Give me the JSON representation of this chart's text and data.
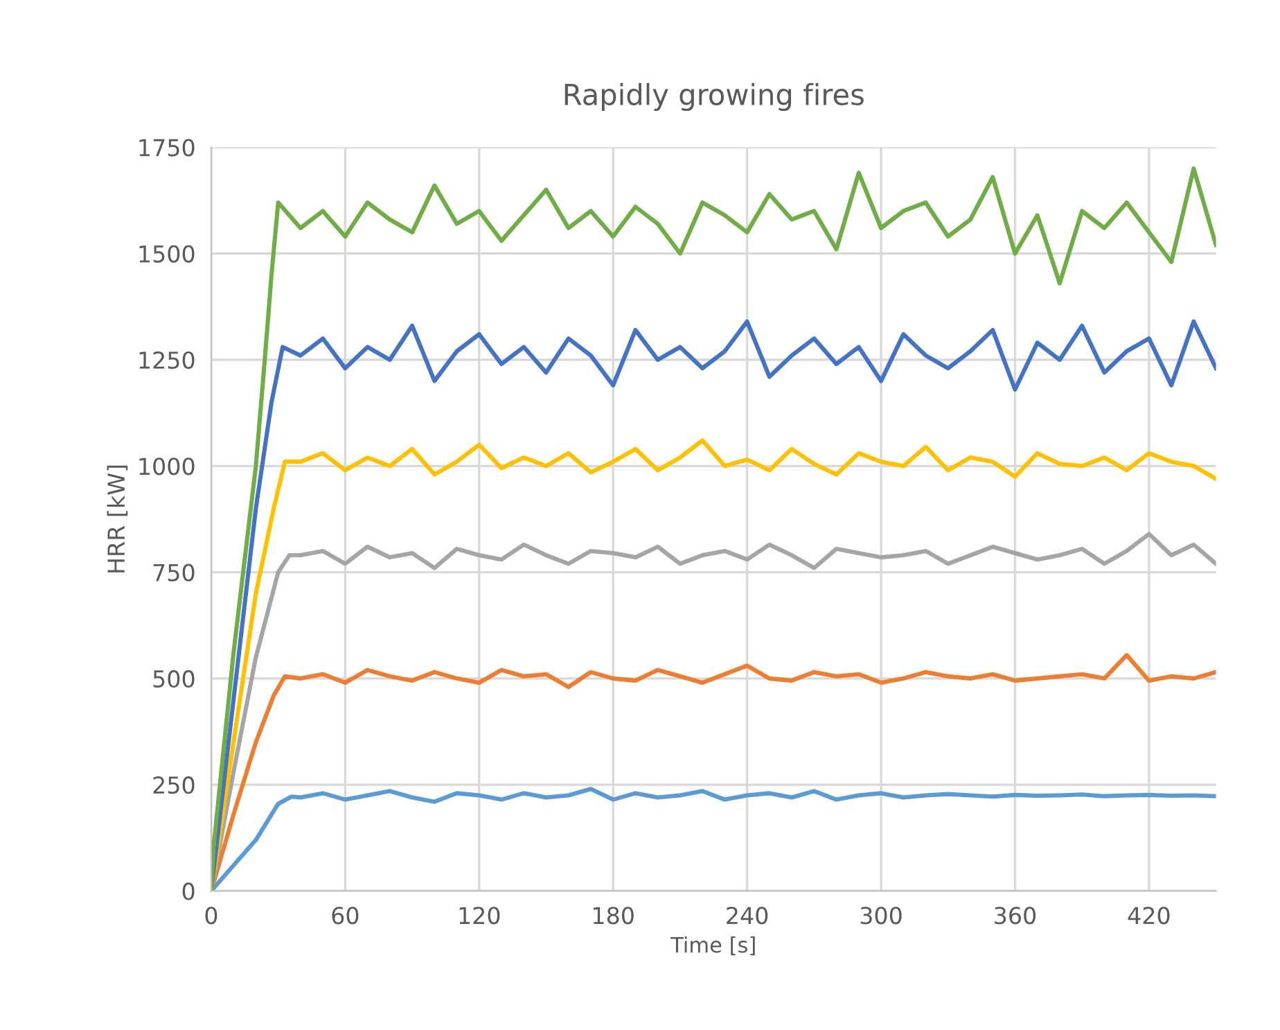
{
  "chart_data": {
    "type": "line",
    "title": "Rapidly growing fires",
    "xlabel": "Time [s]",
    "ylabel": "HRR [kW]",
    "xlim": [
      0,
      450
    ],
    "xticks": [
      0,
      60,
      120,
      180,
      240,
      300,
      360,
      420
    ],
    "ylim": [
      0,
      1750
    ],
    "yticks": [
      0,
      250,
      500,
      750,
      1000,
      1250,
      1500,
      1750
    ],
    "grid": true,
    "legend": false,
    "marker": "none",
    "line_style": "solid",
    "series": [
      {
        "color": "#5b9bd5",
        "x": [
          0,
          10,
          20,
          30,
          36,
          40,
          50,
          60,
          70,
          80,
          90,
          100,
          110,
          120,
          130,
          140,
          150,
          160,
          170,
          180,
          190,
          200,
          210,
          220,
          230,
          240,
          250,
          260,
          270,
          280,
          290,
          300,
          310,
          320,
          330,
          340,
          350,
          360,
          370,
          380,
          390,
          400,
          410,
          420,
          430,
          440,
          450
        ],
        "values": [
          0,
          60,
          120,
          205,
          222,
          220,
          230,
          215,
          225,
          235,
          220,
          210,
          230,
          225,
          215,
          230,
          220,
          225,
          240,
          215,
          230,
          220,
          225,
          235,
          215,
          225,
          230,
          220,
          235,
          215,
          225,
          230,
          220,
          225,
          228,
          225,
          222,
          226,
          224,
          225,
          227,
          223,
          225,
          226,
          224,
          225,
          223
        ]
      },
      {
        "color": "#ed7d31",
        "x": [
          0,
          10,
          20,
          28,
          33,
          40,
          50,
          60,
          70,
          80,
          90,
          100,
          110,
          120,
          130,
          140,
          150,
          160,
          170,
          180,
          190,
          200,
          210,
          220,
          230,
          240,
          250,
          260,
          270,
          280,
          290,
          300,
          310,
          320,
          330,
          340,
          350,
          360,
          370,
          380,
          390,
          400,
          410,
          420,
          430,
          440,
          450
        ],
        "values": [
          0,
          180,
          350,
          460,
          505,
          500,
          510,
          490,
          520,
          505,
          495,
          515,
          500,
          490,
          520,
          505,
          510,
          480,
          515,
          500,
          495,
          520,
          505,
          490,
          510,
          530,
          500,
          495,
          515,
          505,
          510,
          490,
          500,
          515,
          505,
          500,
          510,
          495,
          500,
          505,
          510,
          500,
          555,
          495,
          505,
          500,
          515
        ]
      },
      {
        "color": "#a5a5a5",
        "x": [
          0,
          10,
          20,
          30,
          35,
          40,
          50,
          60,
          70,
          80,
          90,
          100,
          110,
          120,
          130,
          140,
          150,
          160,
          170,
          180,
          190,
          200,
          210,
          220,
          230,
          240,
          250,
          260,
          270,
          280,
          290,
          300,
          310,
          320,
          330,
          340,
          350,
          360,
          370,
          380,
          390,
          400,
          410,
          420,
          430,
          440,
          450
        ],
        "values": [
          0,
          280,
          550,
          750,
          790,
          790,
          800,
          770,
          810,
          785,
          795,
          760,
          805,
          790,
          780,
          815,
          790,
          770,
          800,
          795,
          785,
          810,
          770,
          790,
          800,
          780,
          815,
          790,
          760,
          805,
          795,
          785,
          790,
          800,
          770,
          790,
          810,
          795,
          780,
          790,
          805,
          770,
          800,
          840,
          790,
          815,
          770
        ]
      },
      {
        "color": "#ffc000",
        "x": [
          0,
          10,
          20,
          28,
          33,
          40,
          50,
          60,
          70,
          80,
          90,
          100,
          110,
          120,
          130,
          140,
          150,
          160,
          170,
          180,
          190,
          200,
          210,
          220,
          230,
          240,
          250,
          260,
          270,
          280,
          290,
          300,
          310,
          320,
          330,
          340,
          350,
          360,
          370,
          380,
          390,
          400,
          410,
          420,
          430,
          440,
          450
        ],
        "values": [
          0,
          350,
          700,
          900,
          1010,
          1010,
          1030,
          990,
          1020,
          1000,
          1040,
          980,
          1010,
          1050,
          995,
          1020,
          1000,
          1030,
          985,
          1010,
          1040,
          990,
          1020,
          1060,
          1000,
          1015,
          990,
          1040,
          1005,
          980,
          1030,
          1010,
          1000,
          1045,
          990,
          1020,
          1010,
          975,
          1030,
          1005,
          1000,
          1020,
          990,
          1030,
          1010,
          1000,
          970
        ]
      },
      {
        "color": "#4472c4",
        "x": [
          0,
          10,
          20,
          27,
          32,
          40,
          50,
          60,
          70,
          80,
          90,
          100,
          110,
          120,
          130,
          140,
          150,
          160,
          170,
          180,
          190,
          200,
          210,
          220,
          230,
          240,
          250,
          260,
          270,
          280,
          290,
          300,
          310,
          320,
          330,
          340,
          350,
          360,
          370,
          380,
          390,
          400,
          410,
          420,
          430,
          440,
          450
        ],
        "values": [
          0,
          450,
          900,
          1150,
          1280,
          1260,
          1300,
          1230,
          1280,
          1250,
          1330,
          1200,
          1270,
          1310,
          1240,
          1280,
          1220,
          1300,
          1260,
          1190,
          1320,
          1250,
          1280,
          1230,
          1270,
          1340,
          1210,
          1260,
          1300,
          1240,
          1280,
          1200,
          1310,
          1260,
          1230,
          1270,
          1320,
          1180,
          1290,
          1250,
          1330,
          1220,
          1270,
          1300,
          1190,
          1340,
          1230
        ]
      },
      {
        "color": "#70ad47",
        "x": [
          0,
          1,
          10,
          20,
          24,
          27,
          30,
          40,
          50,
          60,
          70,
          80,
          90,
          100,
          110,
          120,
          130,
          140,
          150,
          160,
          170,
          180,
          190,
          200,
          210,
          220,
          230,
          240,
          250,
          260,
          270,
          280,
          290,
          300,
          310,
          320,
          330,
          340,
          350,
          360,
          370,
          380,
          390,
          400,
          410,
          420,
          430,
          440,
          450
        ],
        "values": [
          0,
          100,
          560,
          1000,
          1250,
          1450,
          1620,
          1560,
          1600,
          1540,
          1620,
          1580,
          1550,
          1660,
          1570,
          1600,
          1530,
          1590,
          1650,
          1560,
          1600,
          1540,
          1610,
          1570,
          1500,
          1620,
          1590,
          1550,
          1640,
          1580,
          1600,
          1510,
          1690,
          1560,
          1600,
          1620,
          1540,
          1580,
          1680,
          1500,
          1590,
          1430,
          1600,
          1560,
          1620,
          1550,
          1480,
          1700,
          1520
        ]
      }
    ]
  }
}
